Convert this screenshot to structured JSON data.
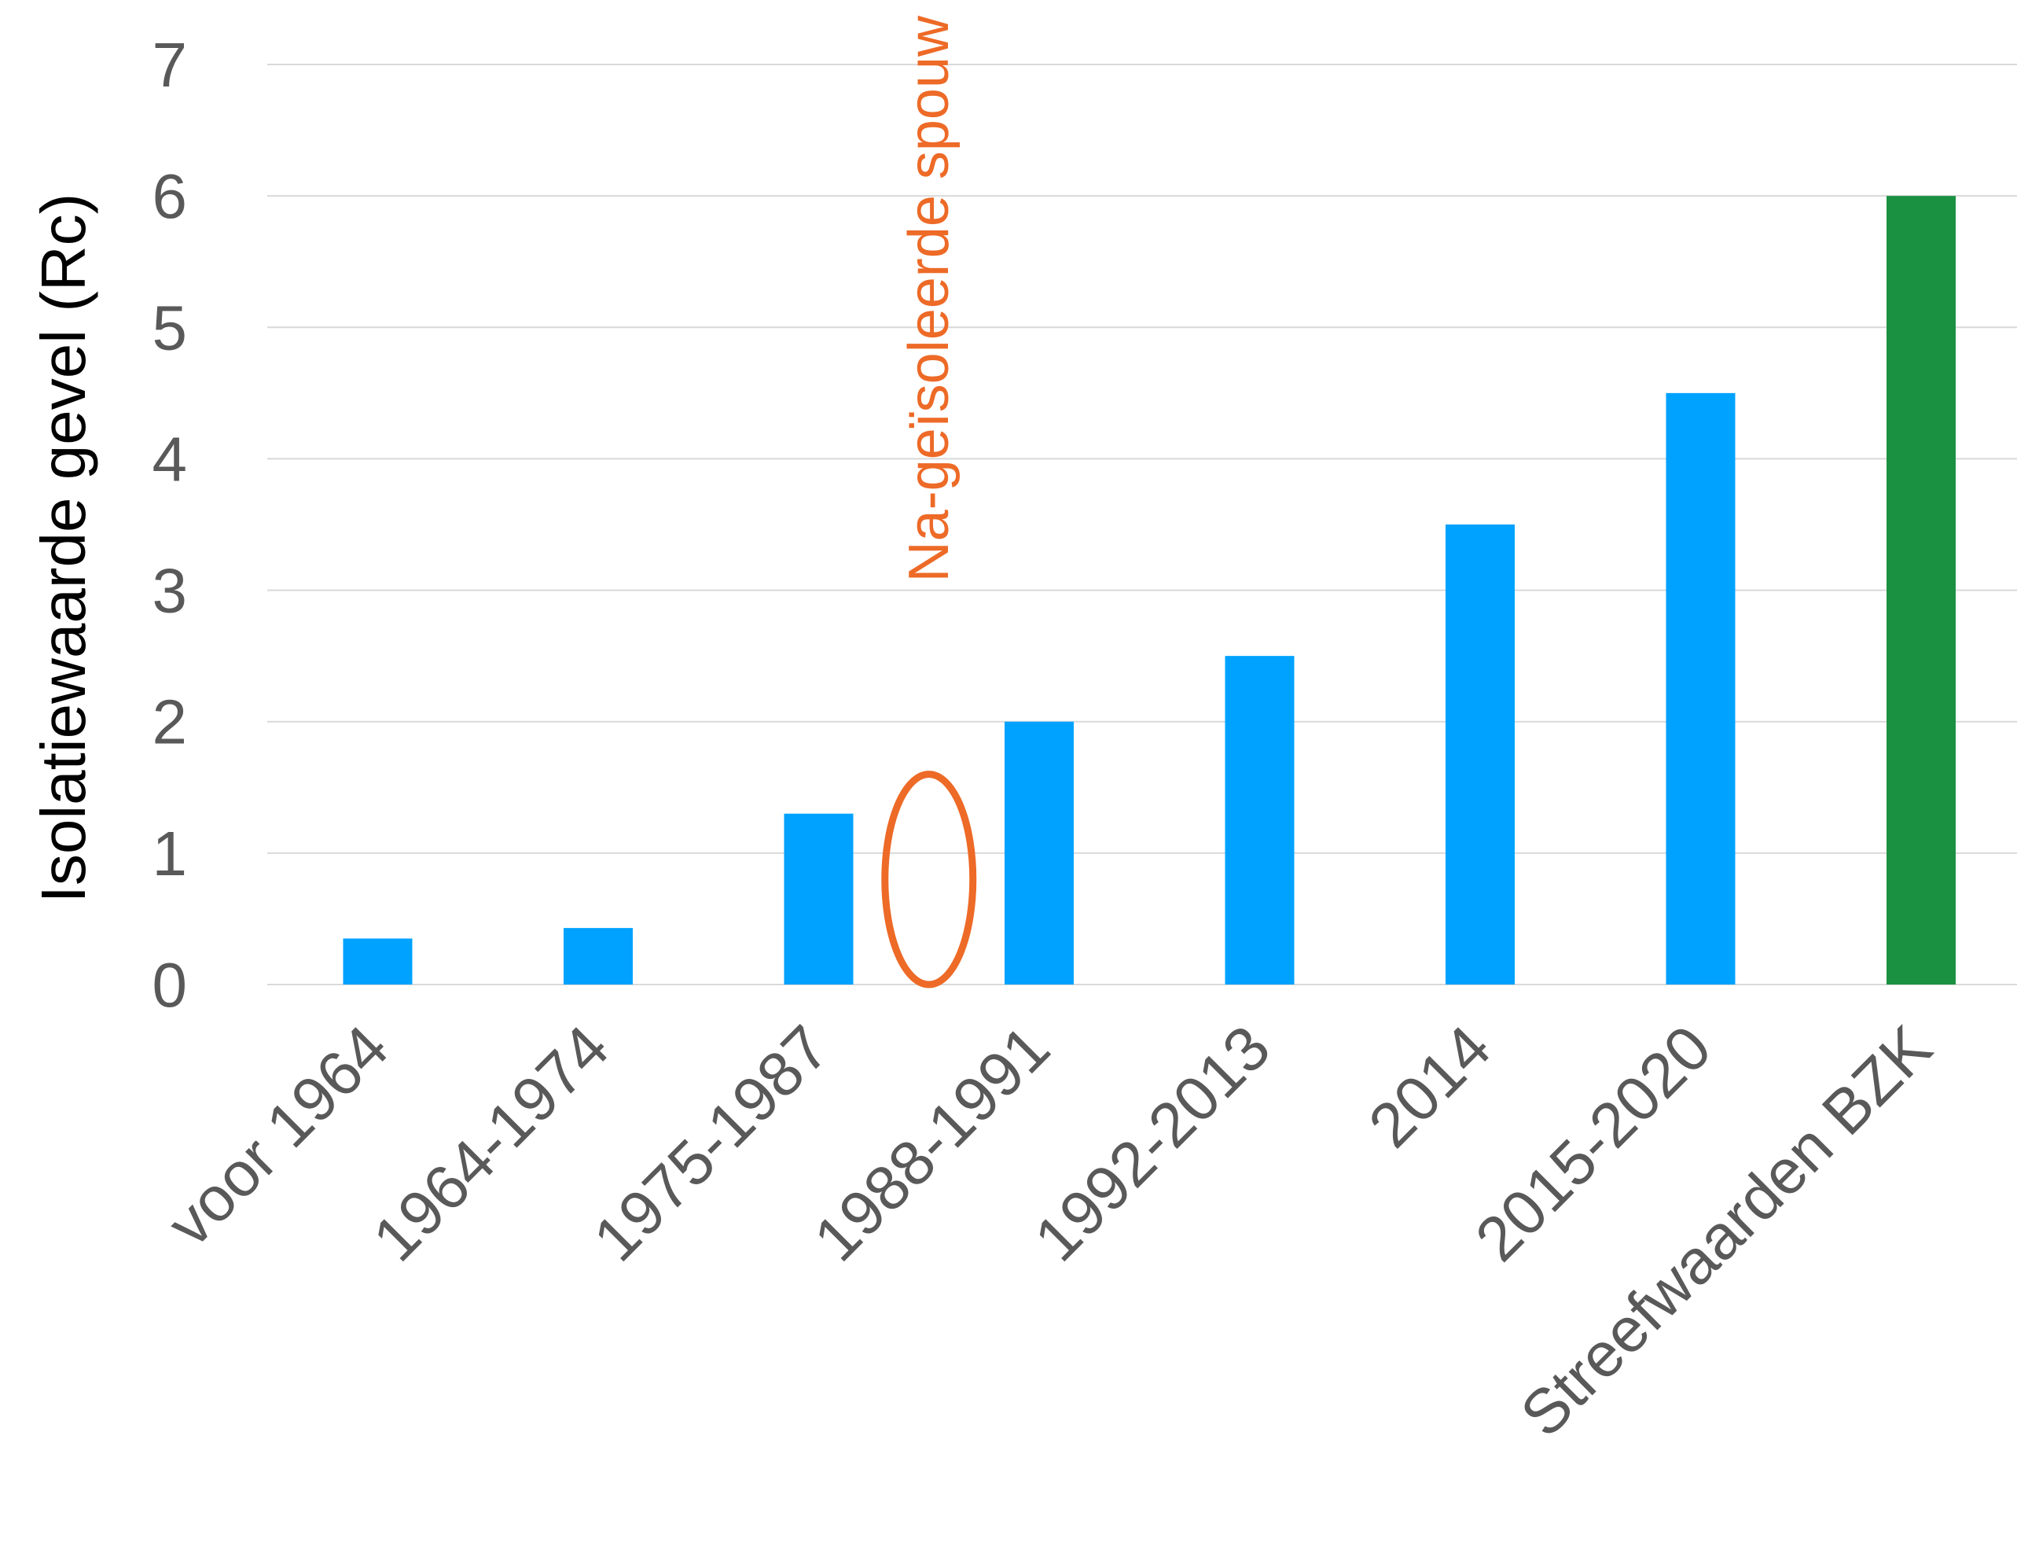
{
  "chart_data": {
    "type": "bar",
    "title": "",
    "xlabel": "",
    "ylabel": "Isolatiewaarde gevel (Rc)",
    "ylim": [
      0,
      7
    ],
    "yticks": [
      "0",
      "1",
      "2",
      "3",
      "4",
      "5",
      "6",
      "7"
    ],
    "grid": true,
    "legend": "none",
    "categories": [
      "voor 1964",
      "1964-1974",
      "1975-1987",
      "1988-1991",
      "1992-2013",
      "2014",
      "2015-2020",
      "Streefwaarden BZK"
    ],
    "values": [
      0.35,
      0.43,
      1.3,
      2.0,
      2.5,
      3.5,
      4.5,
      6.0
    ],
    "bar_colors": [
      "#00A2FF",
      "#00A2FF",
      "#00A2FF",
      "#00A2FF",
      "#00A2FF",
      "#00A2FF",
      "#00A2FF",
      "#1A9141"
    ],
    "annotation": {
      "text": "Na-geïsoleerde spouw",
      "color": "#ED6A27",
      "between": [
        "1975-1987",
        "1988-1991"
      ],
      "ellipse_y_range": [
        0,
        1.6
      ]
    }
  },
  "colors": {
    "grid": "#D9D9D9",
    "tick_text": "#595959",
    "axis_title": "#000000"
  }
}
